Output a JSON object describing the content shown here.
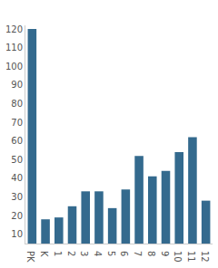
{
  "chart_data": {
    "type": "bar",
    "categories": [
      "PK",
      "K",
      "1",
      "2",
      "3",
      "4",
      "5",
      "6",
      "7",
      "8",
      "9",
      "10",
      "11",
      "12"
    ],
    "values": [
      120,
      18,
      19,
      25,
      33,
      33,
      24,
      34,
      52,
      41,
      44,
      54,
      62,
      28
    ],
    "color": "#346a8e",
    "ylim": [
      5,
      122
    ],
    "yticks": [
      10,
      20,
      30,
      40,
      50,
      60,
      70,
      80,
      90,
      100,
      110,
      120
    ],
    "grid": false
  }
}
